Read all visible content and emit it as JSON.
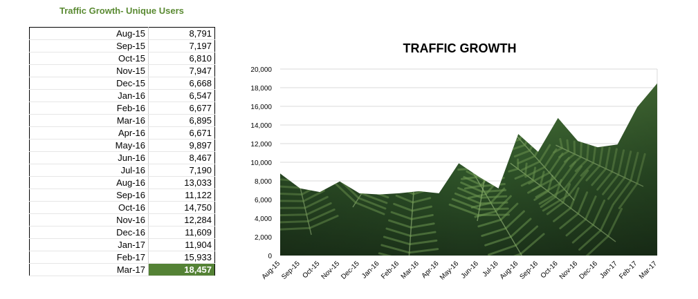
{
  "table": {
    "title": "Traffic Growth- Unique Users",
    "rows": [
      {
        "month": "Aug-15",
        "value": "8,791"
      },
      {
        "month": "Sep-15",
        "value": "7,197"
      },
      {
        "month": "Oct-15",
        "value": "6,810"
      },
      {
        "month": "Nov-15",
        "value": "7,947"
      },
      {
        "month": "Dec-15",
        "value": "6,668"
      },
      {
        "month": "Jan-16",
        "value": "6,547"
      },
      {
        "month": "Feb-16",
        "value": "6,677"
      },
      {
        "month": "Mar-16",
        "value": "6,895"
      },
      {
        "month": "Apr-16",
        "value": "6,671"
      },
      {
        "month": "May-16",
        "value": "9,897"
      },
      {
        "month": "Jun-16",
        "value": "8,467"
      },
      {
        "month": "Jul-16",
        "value": "7,190"
      },
      {
        "month": "Aug-16",
        "value": "13,033"
      },
      {
        "month": "Sep-16",
        "value": "11,122"
      },
      {
        "month": "Oct-16",
        "value": "14,750"
      },
      {
        "month": "Nov-16",
        "value": "12,284"
      },
      {
        "month": "Dec-16",
        "value": "11,609"
      },
      {
        "month": "Jan-17",
        "value": "11,904"
      },
      {
        "month": "Feb-17",
        "value": "15,933"
      },
      {
        "month": "Mar-17",
        "value": "18,457"
      }
    ]
  },
  "chart_data": {
    "type": "area",
    "title": "TRAFFIC GROWTH",
    "categories": [
      "Aug-15",
      "Sep-15",
      "Oct-15",
      "Nov-15",
      "Dec-15",
      "Jan-16",
      "Feb-16",
      "Mar-16",
      "Apr-16",
      "May-16",
      "Jun-16",
      "Jul-16",
      "Aug-16",
      "Sep-16",
      "Oct-16",
      "Nov-16",
      "Dec-16",
      "Jan-17",
      "Feb-17",
      "Mar-17"
    ],
    "values": [
      8791,
      7197,
      6810,
      7947,
      6668,
      6547,
      6677,
      6895,
      6671,
      9897,
      8467,
      7190,
      13033,
      11122,
      14750,
      12284,
      11609,
      11904,
      15933,
      18457
    ],
    "yticks": [
      "0",
      "2,000",
      "4,000",
      "6,000",
      "8,000",
      "10,000",
      "12,000",
      "14,000",
      "16,000",
      "18,000",
      "20,000"
    ],
    "ylim": [
      0,
      20000
    ],
    "grid": true,
    "colors": {
      "fill_dark": "#1f3a1f",
      "fill_mid": "#3f6b34",
      "fill_light": "#7aa25e",
      "grid": "#d9d9d9",
      "highlight": "#548235",
      "title_green": "#5a8a32"
    }
  }
}
